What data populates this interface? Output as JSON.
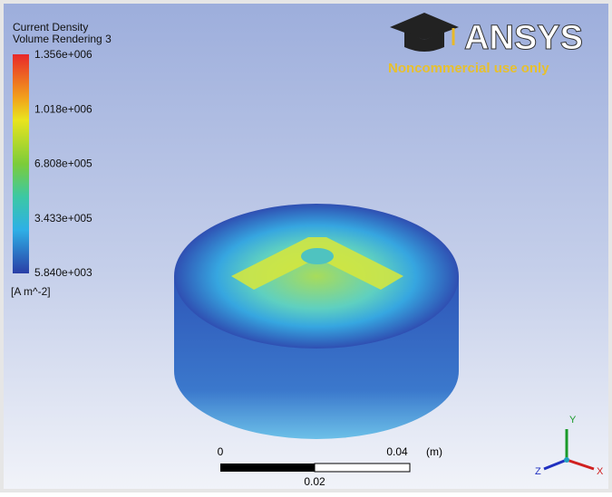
{
  "legend": {
    "title": "Current Density",
    "subtitle": "Volume Rendering 3",
    "ticks": [
      "1.356e+006",
      "1.018e+006",
      "6.808e+005",
      "3.433e+005",
      "5.840e+003"
    ],
    "unit": "[A m^-2]"
  },
  "logo": {
    "brand": "ANSYS",
    "note": "Noncommercial use only"
  },
  "scale": {
    "start": "0",
    "end": "0.04",
    "unit": "(m)",
    "middle": "0.02"
  },
  "triad": {
    "y": "Y",
    "x": "X",
    "z": "Z"
  }
}
